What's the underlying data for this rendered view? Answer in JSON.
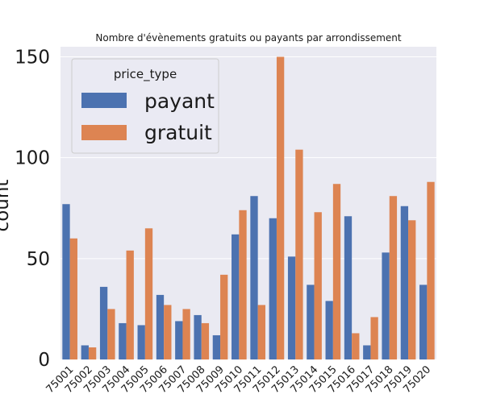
{
  "chart_data": {
    "type": "bar",
    "title": "Nombre d'évènements gratuits ou payants par arrondissement",
    "xlabel": "",
    "ylabel": "count",
    "ylim": [
      0,
      155
    ],
    "yticks": [
      0,
      50,
      100,
      150
    ],
    "grid": true,
    "legend": {
      "title": "price_type",
      "placement": "top-left"
    },
    "categories": [
      "75001",
      "75002",
      "75003",
      "75004",
      "75005",
      "75006",
      "75007",
      "75008",
      "75009",
      "75010",
      "75011",
      "75012",
      "75013",
      "75014",
      "75015",
      "75016",
      "75017",
      "75018",
      "75019",
      "75020"
    ],
    "series": [
      {
        "name": "payant",
        "color": "#4c72b0",
        "values": [
          77,
          7,
          36,
          18,
          17,
          32,
          19,
          22,
          12,
          62,
          81,
          70,
          51,
          37,
          29,
          71,
          7,
          53,
          76,
          37
        ]
      },
      {
        "name": "gratuit",
        "color": "#dd8452",
        "values": [
          60,
          6,
          25,
          54,
          65,
          27,
          25,
          18,
          42,
          74,
          27,
          150,
          104,
          73,
          87,
          13,
          21,
          81,
          69,
          88
        ]
      }
    ]
  },
  "colors": {
    "plot_background": "#eaeaf2",
    "grid": "#ffffff"
  }
}
